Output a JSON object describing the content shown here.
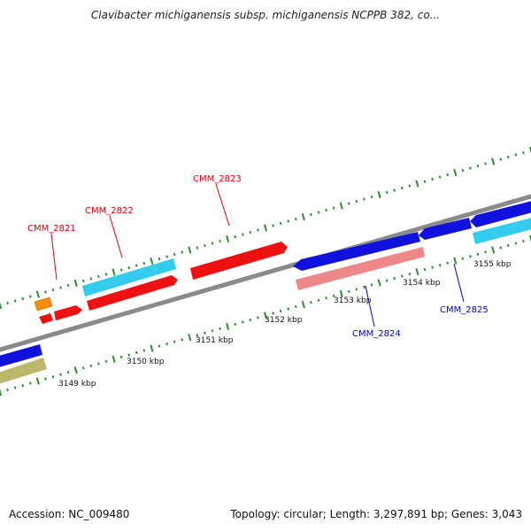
{
  "title": "Clavibacter michiganensis subsp. michiganensis NCPPB 382, co...",
  "footer": {
    "accession": "Accession: NC_009480",
    "summary": "Topology: circular; Length: 3,297,891 bp; Genes: 3,043"
  },
  "scale_labels": [
    "3149 kbp",
    "3150 kbp",
    "3151 kbp",
    "3152 kbp",
    "3153 kbp",
    "3154 kbp",
    "3155 kbp"
  ],
  "gene_labels": [
    {
      "text": "CMM_2821",
      "strand": "forward",
      "color": "#dd0000"
    },
    {
      "text": "CMM_2822",
      "strand": "forward",
      "color": "#dd0000"
    },
    {
      "text": "CMM_2823",
      "strand": "forward",
      "color": "#dd0000"
    },
    {
      "text": "CMM_2824",
      "strand": "reverse",
      "color": "#0000bb"
    },
    {
      "text": "CMM_2825",
      "strand": "reverse",
      "color": "#0000bb"
    }
  ],
  "colors": {
    "backbone": "#8a8a8a",
    "tick": "#2e8b2e",
    "forward_cds": "#ee1111",
    "reverse_cds": "#1111dd",
    "forward_feature": "#33ccee",
    "reverse_feature": "#33ccee",
    "pseudo": "#ee8888",
    "orange": "#ff8c00",
    "olive": "#bdb76b"
  }
}
